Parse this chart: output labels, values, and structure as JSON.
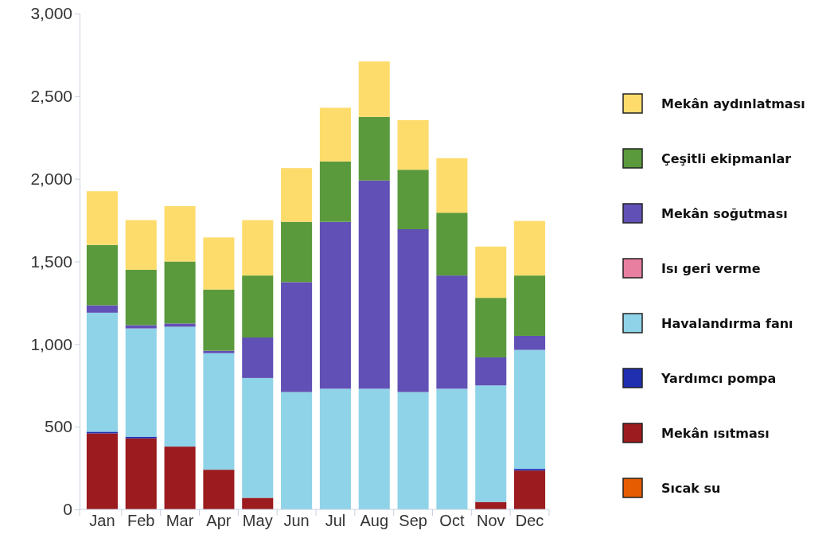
{
  "chart_data": {
    "type": "bar",
    "stacked": true,
    "categories": [
      "Jan",
      "Feb",
      "Mar",
      "Apr",
      "May",
      "Jun",
      "Jul",
      "Aug",
      "Sep",
      "Oct",
      "Nov",
      "Dec"
    ],
    "ylim": [
      0,
      3000
    ],
    "yticks": [
      {
        "value": 0,
        "label": "0"
      },
      {
        "value": 500,
        "label": "500"
      },
      {
        "value": 1000,
        "label": "1,000"
      },
      {
        "value": 1500,
        "label": "1,500"
      },
      {
        "value": 2000,
        "label": "2,000"
      },
      {
        "value": 2500,
        "label": "2,500"
      },
      {
        "value": 3000,
        "label": "3,000"
      }
    ],
    "grid": false,
    "legend": "right",
    "series": [
      {
        "name": "Sıcak su",
        "color": "#e65c00",
        "values": [
          0,
          0,
          0,
          0,
          0,
          0,
          0,
          0,
          0,
          0,
          0,
          0
        ]
      },
      {
        "name": "Mekân ısıtması",
        "color": "#9b1b1e",
        "values": [
          460,
          430,
          380,
          240,
          70,
          0,
          0,
          0,
          0,
          0,
          45,
          235
        ]
      },
      {
        "name": "Yardımcı pompa",
        "color": "#1f2fb0",
        "values": [
          10,
          10,
          0,
          0,
          0,
          0,
          0,
          0,
          0,
          0,
          0,
          10
        ]
      },
      {
        "name": "Havalandırma fanı",
        "color": "#8fd3e8",
        "values": [
          720,
          655,
          725,
          705,
          725,
          710,
          730,
          730,
          710,
          730,
          705,
          720
        ]
      },
      {
        "name": "Isı geri verme",
        "color": "#e87fa0",
        "values": [
          0,
          0,
          0,
          0,
          0,
          0,
          0,
          0,
          0,
          0,
          0,
          0
        ]
      },
      {
        "name": "Mekân soğutması",
        "color": "#6150b5",
        "values": [
          45,
          20,
          20,
          15,
          245,
          665,
          1010,
          1260,
          985,
          685,
          170,
          85
        ]
      },
      {
        "name": "Çeşitli ekipmanlar",
        "color": "#5a9a3c",
        "values": [
          365,
          335,
          375,
          370,
          375,
          365,
          365,
          385,
          360,
          380,
          360,
          365
        ]
      },
      {
        "name": "Mekân aydınlatması",
        "color": "#fedc6c",
        "values": [
          325,
          300,
          335,
          315,
          335,
          325,
          325,
          335,
          300,
          330,
          310,
          330
        ]
      }
    ]
  }
}
